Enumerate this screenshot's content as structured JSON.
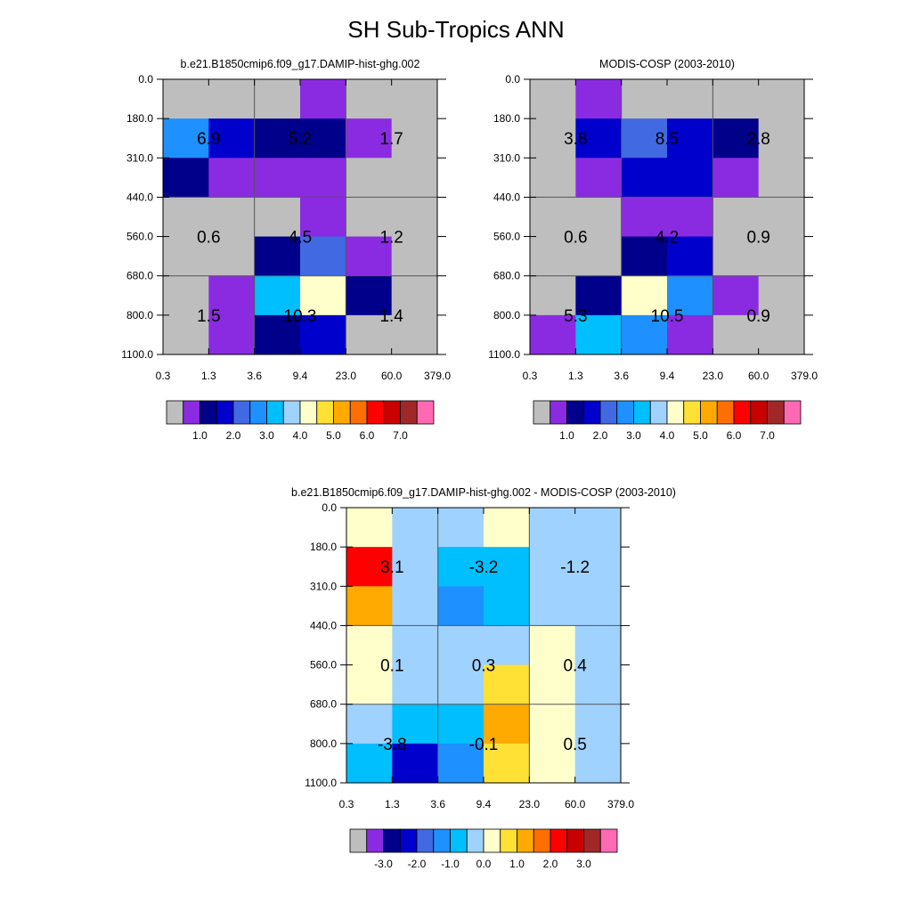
{
  "title": "SH Sub-Tropics ANN",
  "chart_data": [
    {
      "type": "heatmap",
      "title": "b.e21.B1850cmip6.f09_g17.DAMIP-hist-ghg.002",
      "x_ticks": [
        "0.3",
        "1.3",
        "3.6",
        "9.4",
        "23.0",
        "60.0",
        "379.0"
      ],
      "y_ticks": [
        "0.0",
        "180.0",
        "310.0",
        "440.0",
        "560.0",
        "680.0",
        "800.0",
        "1100.0"
      ],
      "cells": [
        [
          "#bebebe",
          "#bebebe",
          "#bebebe",
          "#8a2be2",
          "#bebebe",
          "#bebebe"
        ],
        [
          "#1e90ff",
          "#0000cd",
          "#00008b",
          "#00008b",
          "#8a2be2",
          "#bebebe"
        ],
        [
          "#00008b",
          "#8a2be2",
          "#8a2be2",
          "#8a2be2",
          "#bebebe",
          "#bebebe"
        ],
        [
          "#bebebe",
          "#bebebe",
          "#bebebe",
          "#8a2be2",
          "#bebebe",
          "#bebebe"
        ],
        [
          "#bebebe",
          "#bebebe",
          "#00008b",
          "#4169e1",
          "#8a2be2",
          "#bebebe"
        ],
        [
          "#bebebe",
          "#8a2be2",
          "#00bfff",
          "#ffffcc",
          "#00008b",
          "#bebebe"
        ],
        [
          "#bebebe",
          "#8a2be2",
          "#00008b",
          "#0000cd",
          "#bebebe",
          "#bebebe"
        ]
      ],
      "box_labels": [
        [
          "6.9",
          "5.2",
          "1.7"
        ],
        [
          "0.6",
          "4.5",
          "1.2"
        ],
        [
          "1.5",
          "10.3",
          "1.4"
        ]
      ],
      "colorbar": {
        "colors": [
          "#bebebe",
          "#8a2be2",
          "#00008b",
          "#0000cd",
          "#4169e1",
          "#1e90ff",
          "#00bfff",
          "#a0d2ff",
          "#ffffcc",
          "#ffe135",
          "#ffaa00",
          "#ff6e00",
          "#ff0000",
          "#c80000",
          "#a02828",
          "#ff69b4"
        ],
        "labels": [
          "1.0",
          "2.0",
          "3.0",
          "4.0",
          "5.0",
          "6.0",
          "7.0"
        ]
      }
    },
    {
      "type": "heatmap",
      "title": "MODIS-COSP (2003-2010)",
      "x_ticks": [
        "0.3",
        "1.3",
        "3.6",
        "9.4",
        "23.0",
        "60.0",
        "379.0"
      ],
      "y_ticks": [
        "0.0",
        "180.0",
        "310.0",
        "440.0",
        "560.0",
        "680.0",
        "800.0",
        "1100.0"
      ],
      "cells": [
        [
          "#bebebe",
          "#8a2be2",
          "#bebebe",
          "#bebebe",
          "#bebebe",
          "#bebebe"
        ],
        [
          "#bebebe",
          "#0000cd",
          "#4169e1",
          "#0000cd",
          "#00008b",
          "#bebebe"
        ],
        [
          "#bebebe",
          "#8a2be2",
          "#0000cd",
          "#0000cd",
          "#8a2be2",
          "#bebebe"
        ],
        [
          "#bebebe",
          "#bebebe",
          "#8a2be2",
          "#8a2be2",
          "#bebebe",
          "#bebebe"
        ],
        [
          "#bebebe",
          "#bebebe",
          "#00008b",
          "#0000cd",
          "#bebebe",
          "#bebebe"
        ],
        [
          "#bebebe",
          "#00008b",
          "#ffffcc",
          "#1e90ff",
          "#8a2be2",
          "#bebebe"
        ],
        [
          "#8a2be2",
          "#00bfff",
          "#1e90ff",
          "#8a2be2",
          "#bebebe",
          "#bebebe"
        ]
      ],
      "box_labels": [
        [
          "3.8",
          "8.5",
          "2.8"
        ],
        [
          "0.6",
          "4.2",
          "0.9"
        ],
        [
          "5.3",
          "10.5",
          "0.9"
        ]
      ],
      "colorbar": {
        "colors": [
          "#bebebe",
          "#8a2be2",
          "#00008b",
          "#0000cd",
          "#4169e1",
          "#1e90ff",
          "#00bfff",
          "#a0d2ff",
          "#ffffcc",
          "#ffe135",
          "#ffaa00",
          "#ff6e00",
          "#ff0000",
          "#c80000",
          "#a02828",
          "#ff69b4"
        ],
        "labels": [
          "1.0",
          "2.0",
          "3.0",
          "4.0",
          "5.0",
          "6.0",
          "7.0"
        ]
      }
    },
    {
      "type": "heatmap",
      "title": "b.e21.B1850cmip6.f09_g17.DAMIP-hist-ghg.002 - MODIS-COSP (2003-2010)",
      "x_ticks": [
        "0.3",
        "1.3",
        "3.6",
        "9.4",
        "23.0",
        "60.0",
        "379.0"
      ],
      "y_ticks": [
        "0.0",
        "180.0",
        "310.0",
        "440.0",
        "560.0",
        "680.0",
        "800.0",
        "1100.0"
      ],
      "cells": [
        [
          "#ffffcc",
          "#a0d2ff",
          "#a0d2ff",
          "#ffffcc",
          "#a0d2ff",
          "#a0d2ff"
        ],
        [
          "#ff0000",
          "#a0d2ff",
          "#00bfff",
          "#00bfff",
          "#a0d2ff",
          "#a0d2ff"
        ],
        [
          "#ffaa00",
          "#a0d2ff",
          "#1e90ff",
          "#00bfff",
          "#a0d2ff",
          "#a0d2ff"
        ],
        [
          "#ffffcc",
          "#a0d2ff",
          "#a0d2ff",
          "#a0d2ff",
          "#ffffcc",
          "#a0d2ff"
        ],
        [
          "#ffffcc",
          "#a0d2ff",
          "#a0d2ff",
          "#ffe135",
          "#ffffcc",
          "#a0d2ff"
        ],
        [
          "#a0d2ff",
          "#00bfff",
          "#00bfff",
          "#ffaa00",
          "#ffffcc",
          "#a0d2ff"
        ],
        [
          "#00bfff",
          "#0000cd",
          "#1e90ff",
          "#ffe135",
          "#ffffcc",
          "#a0d2ff"
        ]
      ],
      "box_labels": [
        [
          "3.1",
          "-3.2",
          "-1.2"
        ],
        [
          "0.1",
          "0.3",
          "0.4"
        ],
        [
          "-3.8",
          "-0.1",
          "0.5"
        ]
      ],
      "colorbar": {
        "colors": [
          "#bebebe",
          "#8a2be2",
          "#00008b",
          "#0000cd",
          "#4169e1",
          "#1e90ff",
          "#00bfff",
          "#a0d2ff",
          "#ffffcc",
          "#ffe135",
          "#ffaa00",
          "#ff6e00",
          "#ff0000",
          "#c80000",
          "#a02828",
          "#ff69b4"
        ],
        "labels": [
          "-3.0",
          "-2.0",
          "-1.0",
          "0.0",
          "1.0",
          "2.0",
          "3.0"
        ]
      }
    }
  ]
}
